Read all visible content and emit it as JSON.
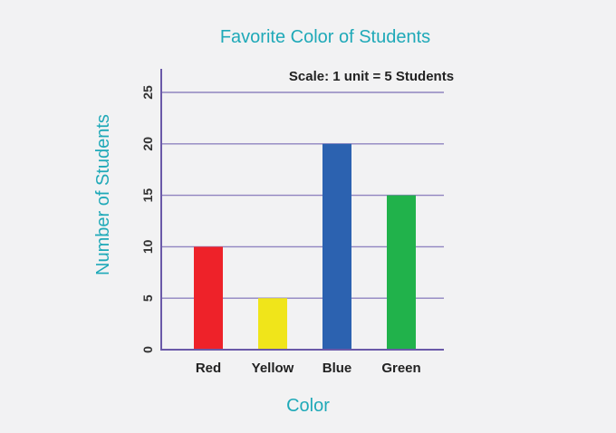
{
  "chart_data": {
    "type": "bar",
    "title": "Favorite Color of Students",
    "xlabel": "Color",
    "ylabel": "Number of Students",
    "annotation": "Scale: 1 unit = 5 Students",
    "categories": [
      "Red",
      "Yellow",
      "Blue",
      "Green"
    ],
    "values": [
      10,
      5,
      20,
      15
    ],
    "bar_colors": [
      "#ee2229",
      "#f0e51a",
      "#2c62b0",
      "#21b24b"
    ],
    "ylim": [
      0,
      25
    ],
    "yticks": [
      0,
      5,
      10,
      15,
      20,
      25
    ],
    "grid": true,
    "colors": {
      "title": "#1fa9b8",
      "axis": "#6a59a8",
      "grid": "#8f84c0"
    }
  }
}
